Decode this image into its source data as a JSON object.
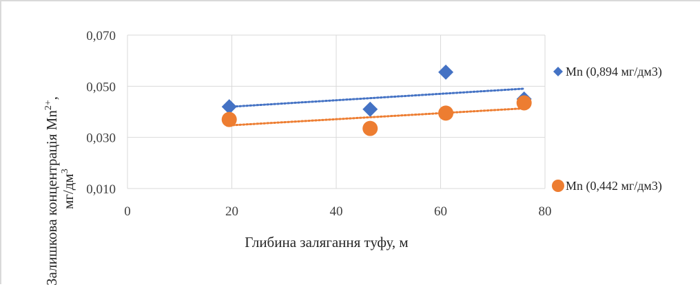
{
  "chart_data": {
    "type": "scatter",
    "title": "",
    "xlabel": "Глибина залягання туфу, м",
    "ylabel_line1": "Залишкова концентрація Mn",
    "ylabel_sup": "2+",
    "ylabel_line1_end": ",",
    "ylabel_line2": "мг/дм",
    "ylabel_line2_sup": "3",
    "xlim": [
      0,
      80
    ],
    "ylim": [
      0.01,
      0.07
    ],
    "x_ticks": [
      "0",
      "20",
      "40",
      "60",
      "80"
    ],
    "x_tick_values": [
      0,
      20,
      40,
      60,
      80
    ],
    "y_ticks": [
      "0,010",
      "0,030",
      "0,050",
      "0,070"
    ],
    "y_tick_values": [
      0.01,
      0.03,
      0.05,
      0.07
    ],
    "grid": true,
    "legend": "right",
    "trendline": "linear, dotted",
    "series": [
      {
        "name": "Mn (0,894 мг/дм3)",
        "marker": "diamond",
        "color": "#4472c4",
        "x": [
          19.5,
          46.5,
          61,
          76
        ],
        "y": [
          0.042,
          0.041,
          0.0555,
          0.045
        ]
      },
      {
        "name": "Mn (0,442 мг/дм3)",
        "marker": "circle",
        "color": "#ed7d31",
        "x": [
          19.5,
          46.5,
          61,
          76
        ],
        "y": [
          0.037,
          0.0335,
          0.0395,
          0.0435
        ]
      }
    ]
  }
}
